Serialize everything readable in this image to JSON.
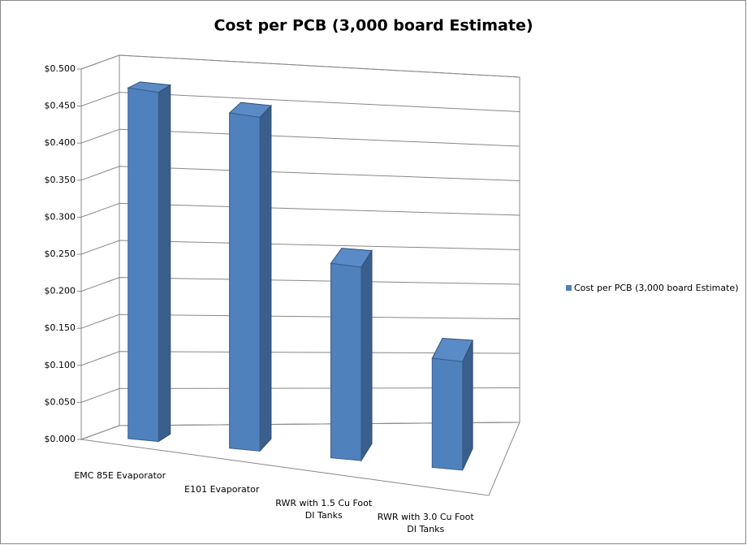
{
  "chart_data": {
    "type": "bar3d",
    "title": "Cost per PCB (3,000  board Estimate)",
    "categories": [
      "EMC 85E Evaporator",
      "E101 Evaporator",
      "RWR with 1.5 Cu Foot DI Tanks",
      "RWR with 3.0 Cu Foot DI Tanks"
    ],
    "series": [
      {
        "name": "Cost per PCB (3,000 board Estimate)",
        "color": "#4f81bd",
        "values": [
          0.476,
          0.462,
          0.272,
          0.155
        ]
      }
    ],
    "ylim": [
      0,
      0.5
    ],
    "yticks": [
      {
        "value": 0,
        "label": "$0.000"
      },
      {
        "value": 0.05,
        "label": "$0.050"
      },
      {
        "value": 0.1,
        "label": "$0.100"
      },
      {
        "value": 0.15,
        "label": "$0.150"
      },
      {
        "value": 0.2,
        "label": "$0.200"
      },
      {
        "value": 0.25,
        "label": "$0.250"
      },
      {
        "value": 0.3,
        "label": "$0.300"
      },
      {
        "value": 0.35,
        "label": "$0.350"
      },
      {
        "value": 0.4,
        "label": "$0.400"
      },
      {
        "value": 0.45,
        "label": "$0.450"
      },
      {
        "value": 0.5,
        "label": "$0.500"
      }
    ],
    "grid": true,
    "legend": "right"
  }
}
